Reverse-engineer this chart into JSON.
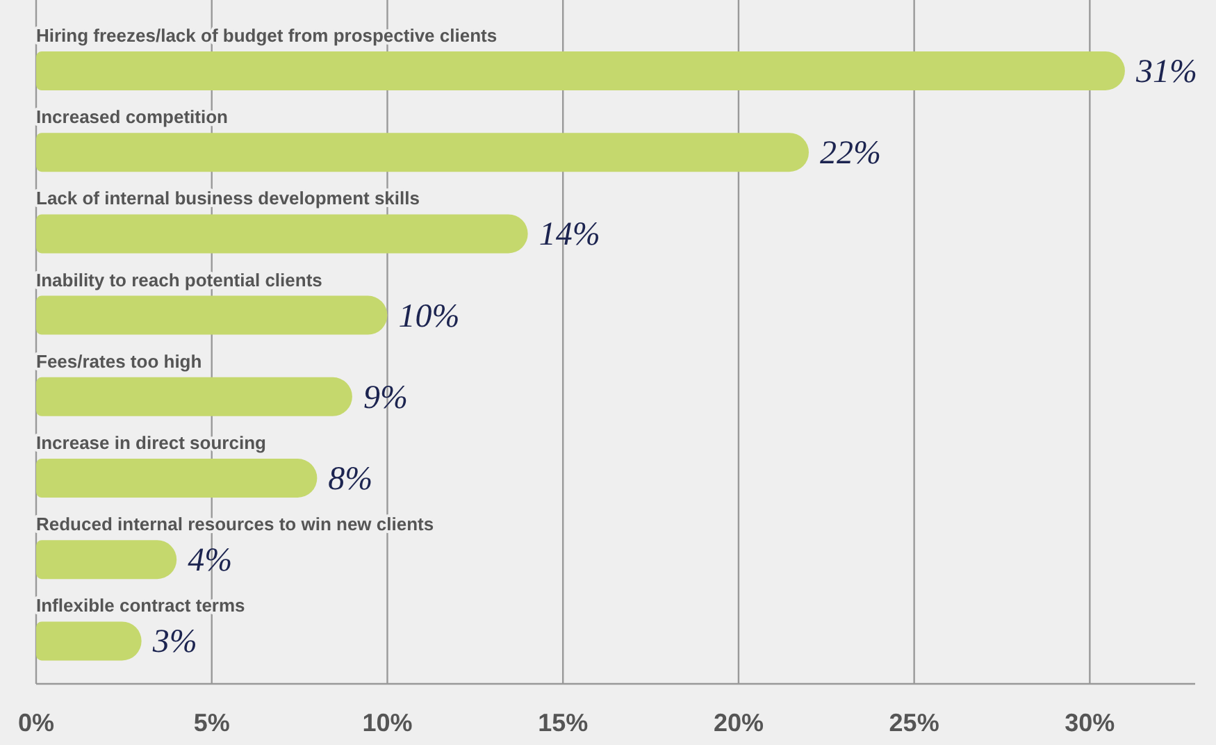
{
  "chart_data": {
    "type": "bar",
    "orientation": "horizontal",
    "categories": [
      "Hiring freezes/lack of budget from prospective clients",
      "Increased competition",
      "Lack of internal business development skills",
      "Inability to reach potential clients",
      "Fees/rates too high",
      "Increase in direct sourcing",
      "Reduced internal resources to win new clients",
      "Inflexible contract terms"
    ],
    "values": [
      31,
      22,
      14,
      10,
      9,
      8,
      4,
      3
    ],
    "value_labels": [
      "31%",
      "22%",
      "14%",
      "10%",
      "9%",
      "8%",
      "4%",
      "3%"
    ],
    "color": "#c5d86d",
    "xlim": [
      0,
      33
    ],
    "xticks": [
      {
        "value": 0,
        "label": "0%"
      },
      {
        "value": 5,
        "label": "5%"
      },
      {
        "value": 10,
        "label": "10%"
      },
      {
        "value": 15,
        "label": "15%"
      },
      {
        "value": 20,
        "label": "20%"
      },
      {
        "value": 25,
        "label": "25%"
      },
      {
        "value": 30,
        "label": "30%"
      }
    ],
    "grid": "x"
  }
}
